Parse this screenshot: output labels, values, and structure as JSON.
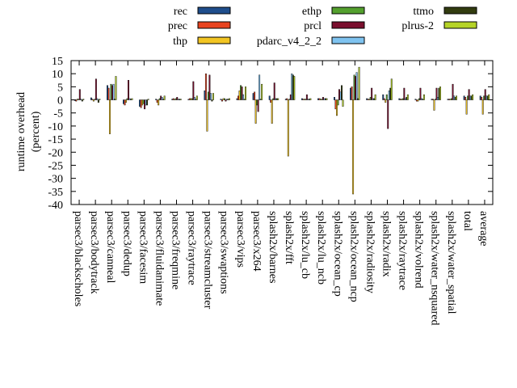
{
  "chart_data": {
    "type": "bar",
    "xlabel": "",
    "ylabel": "runtime overhead (percent)",
    "ylabel_lines": [
      "runtime overhead",
      "(percent)"
    ],
    "ylim": [
      -40,
      15
    ],
    "yticks": [
      15,
      10,
      5,
      0,
      -5,
      -10,
      -15,
      -20,
      -25,
      -30,
      -35,
      -40
    ],
    "grid": false,
    "legend_position": "top",
    "categories": [
      "parsec3/blackscholes",
      "parsec3/bodytrack",
      "parsec3/canneal",
      "parsec3/dedup",
      "parsec3/facesim",
      "parsec3/fluidanimate",
      "parsec3/freqmine",
      "parsec3/raytrace",
      "parsec3/streamcluster",
      "parsec3/swaptions",
      "parsec3/vips",
      "parsec3/x264",
      "splash2x/barnes",
      "splash2x/fft",
      "splash2x/lu_cb",
      "splash2x/lu_ncb",
      "splash2x/ocean_cp",
      "splash2x/ocean_ncp",
      "splash2x/radiosity",
      "splash2x/radix",
      "splash2x/raytrace",
      "splash2x/volrend",
      "splash2x/water_nsquared",
      "splash2x/water_spatial",
      "total",
      "average"
    ],
    "series": [
      {
        "name": "rec",
        "color": "#1f4e8c",
        "values": [
          -0.3,
          0.8,
          5.5,
          -1.5,
          -2.5,
          0.3,
          0.3,
          0.2,
          3.5,
          0.3,
          0.5,
          2.5,
          1.5,
          0.3,
          0.5,
          0.5,
          1.0,
          4.5,
          0.5,
          2.0,
          0.5,
          0.3,
          0.3,
          0.3,
          1.5,
          1.5
        ]
      },
      {
        "name": "prec",
        "color": "#e8431f",
        "values": [
          -0.5,
          0.3,
          4.5,
          -2.0,
          -3.0,
          -1.0,
          0.5,
          0.5,
          10.0,
          -0.5,
          1.5,
          3.0,
          -1.0,
          0.5,
          0.3,
          0.5,
          -3.5,
          5.0,
          0.3,
          0.5,
          0.3,
          -0.5,
          0.3,
          0.3,
          1.0,
          1.0
        ]
      },
      {
        "name": "thp",
        "color": "#f2c523",
        "values": [
          0.3,
          -0.5,
          -13.0,
          -1.0,
          -2.0,
          -2.0,
          0.2,
          0.5,
          -12.0,
          0.5,
          3.5,
          -9.0,
          -9.0,
          -21.5,
          0.3,
          0.3,
          -6.0,
          -36.0,
          0.3,
          -1.0,
          0.3,
          -0.5,
          -4.0,
          0.3,
          -5.5,
          -5.5
        ]
      },
      {
        "name": "ethp",
        "color": "#54a02e",
        "values": [
          0.3,
          0.3,
          6.0,
          0.5,
          -1.5,
          0.5,
          0.5,
          0.5,
          3.0,
          0.5,
          5.5,
          -2.0,
          0.5,
          0.3,
          0.3,
          0.3,
          -2.0,
          9.5,
          1.0,
          2.0,
          0.5,
          0.5,
          0.3,
          0.5,
          1.5,
          1.5
        ]
      },
      {
        "name": "prcl",
        "color": "#7a0f2e",
        "values": [
          4.0,
          8.0,
          5.5,
          7.5,
          -3.5,
          1.5,
          1.0,
          7.0,
          9.5,
          -0.5,
          5.0,
          -4.5,
          6.5,
          2.0,
          2.0,
          1.0,
          4.0,
          9.0,
          4.5,
          -11.0,
          4.5,
          4.5,
          4.5,
          6.0,
          4.0,
          4.0
        ]
      },
      {
        "name": "pdarc_v4_2_2",
        "color": "#7fc3f0",
        "values": [
          0.3,
          0.5,
          6.0,
          0.5,
          -2.0,
          1.0,
          0.3,
          1.0,
          2.5,
          0.3,
          2.0,
          9.5,
          0.5,
          10.0,
          0.3,
          0.5,
          3.0,
          10.5,
          0.5,
          3.5,
          0.5,
          0.5,
          1.0,
          1.5,
          1.5,
          1.5
        ]
      },
      {
        "name": "ttmo",
        "color": "#323c0f",
        "values": [
          -0.5,
          -1.0,
          0.3,
          0.3,
          -2.0,
          0.3,
          0.3,
          0.3,
          -0.5,
          0.3,
          0.3,
          0.3,
          0.5,
          9.5,
          0.3,
          0.5,
          5.5,
          0.5,
          0.5,
          4.5,
          1.0,
          0.3,
          4.5,
          1.0,
          1.5,
          1.5
        ]
      },
      {
        "name": "plrus-2",
        "color": "#b5d327",
        "values": [
          0.3,
          0.3,
          9.0,
          0.5,
          0.3,
          1.5,
          0.3,
          1.5,
          2.5,
          0.5,
          5.0,
          6.0,
          0.5,
          9.0,
          0.5,
          0.5,
          -2.5,
          12.5,
          2.0,
          8.0,
          2.0,
          2.0,
          5.0,
          1.5,
          2.0,
          2.0
        ]
      }
    ]
  }
}
